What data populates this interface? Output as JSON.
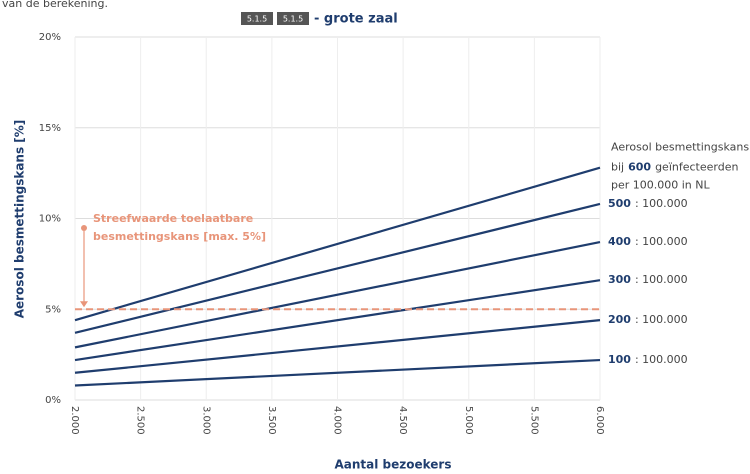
{
  "chart_data": {
    "type": "line",
    "intro_text": "van de berekening.",
    "title_badges": [
      "5.1.5",
      "5.1.5"
    ],
    "title": "- grote zaal",
    "x_label": "Aantal bezoekers",
    "y_label": "Aerosol besmettingskans [%]",
    "x": [
      2000,
      6000
    ],
    "xlim": [
      2000,
      6000
    ],
    "xticks": [
      {
        "value": 2000,
        "label": "2.000"
      },
      {
        "value": 2500,
        "label": "2.500"
      },
      {
        "value": 3000,
        "label": "3.000"
      },
      {
        "value": 3500,
        "label": "3.500"
      },
      {
        "value": 4000,
        "label": "4.000"
      },
      {
        "value": 4500,
        "label": "4.500"
      },
      {
        "value": 5000,
        "label": "5.000"
      },
      {
        "value": 5500,
        "label": "5.500"
      },
      {
        "value": 6000,
        "label": "6.000"
      }
    ],
    "ylim": [
      0,
      20
    ],
    "yticks": [
      {
        "value": 0,
        "label": "0%"
      },
      {
        "value": 5,
        "label": "5%"
      },
      {
        "value": 10,
        "label": "10%"
      },
      {
        "value": 15,
        "label": "15%"
      },
      {
        "value": 20,
        "label": "20%"
      }
    ],
    "grid": true,
    "legend_header": [
      "Aerosol besmettingskans",
      "bij",
      "geïnfecteerden",
      "per 100.000 in NL"
    ],
    "legend_suffix": ": 100.000",
    "series": [
      {
        "name": "600",
        "color": "#1f3d6e",
        "values": [
          4.4,
          12.8
        ]
      },
      {
        "name": "500",
        "color": "#1f3d6e",
        "values": [
          3.7,
          10.8
        ]
      },
      {
        "name": "400",
        "color": "#1f3d6e",
        "values": [
          2.9,
          8.7
        ]
      },
      {
        "name": "300",
        "color": "#1f3d6e",
        "values": [
          2.2,
          6.6
        ]
      },
      {
        "name": "200",
        "color": "#1f3d6e",
        "values": [
          1.5,
          4.4
        ]
      },
      {
        "name": "100",
        "color": "#1f3d6e",
        "values": [
          0.8,
          2.2
        ]
      }
    ],
    "threshold": {
      "value": 5,
      "color": "#e8957a",
      "label": [
        "Streefwaarde toelaatbare",
        "besmettingskans [max. 5%]"
      ]
    }
  }
}
